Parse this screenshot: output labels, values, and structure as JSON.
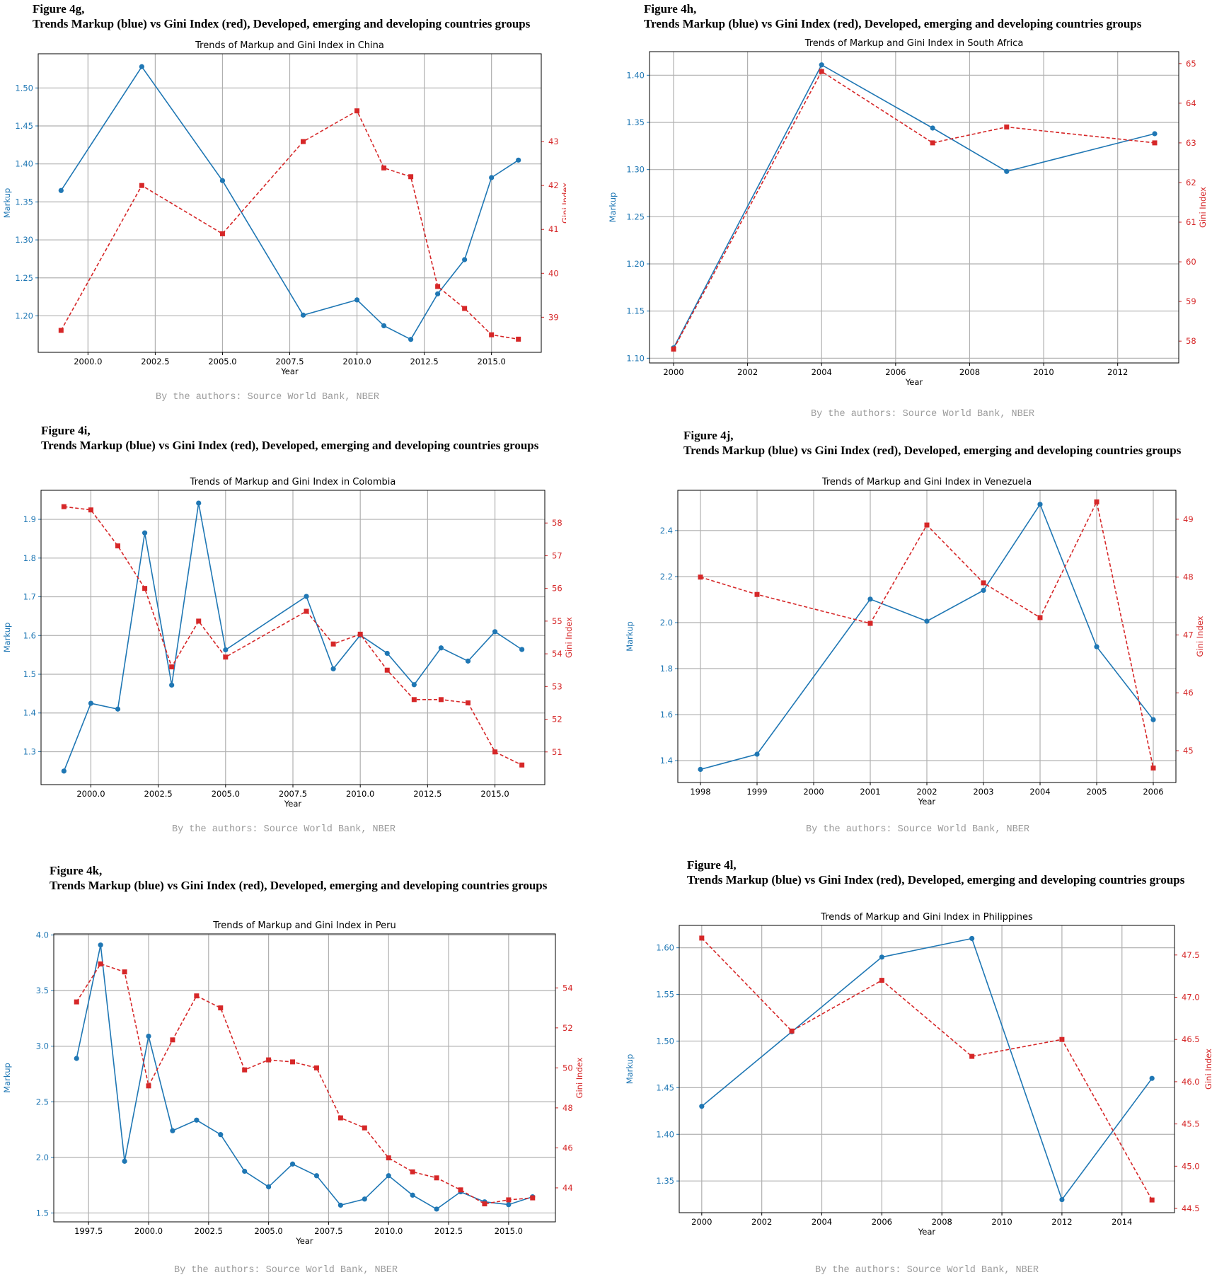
{
  "figure_prefix": "Figure",
  "header_subtitle": "Trends Markup (blue) vs Gini Index (red), Developed, emerging and developing countries groups",
  "credit": "By the authors: Source World Bank, NBER",
  "colors": {
    "markup": "#1f77b4",
    "gini": "#d62728"
  },
  "chart_data": [
    {
      "figure_label": "Figure 4g,",
      "type": "line",
      "title": "Trends of Markup and Gini Index in China",
      "xlabel": "Year",
      "ylabel": "Markup",
      "ylabel_right": "Gini Index",
      "x_ticks": [
        2000,
        2002.5,
        2005,
        2007.5,
        2010,
        2012.5,
        2015
      ],
      "x_tick_labels": [
        "2000.0",
        "2002.5",
        "2005.0",
        "2007.5",
        "2010.0",
        "2012.5",
        "2015.0"
      ],
      "xlim": [
        1998.15,
        2016.85
      ],
      "y_ticks": [
        1.2,
        1.25,
        1.3,
        1.35,
        1.4,
        1.45,
        1.5
      ],
      "y_tick_labels": [
        "1.20",
        "1.25",
        "1.30",
        "1.35",
        "1.40",
        "1.45",
        "1.50"
      ],
      "ylim": [
        1.152,
        1.545
      ],
      "y2_ticks": [
        39,
        40,
        41,
        42,
        43
      ],
      "y2_tick_labels": [
        "39",
        "40",
        "41",
        "42",
        "43"
      ],
      "y2lim": [
        38.2,
        45.0
      ],
      "grid": true,
      "series": [
        {
          "name": "Markup",
          "axis": "left",
          "style": "solid-circle",
          "x": [
            1999,
            2002,
            2005,
            2008,
            2010,
            2011,
            2012,
            2013,
            2014,
            2015,
            2016
          ],
          "values": [
            1.365,
            1.528,
            1.378,
            1.201,
            1.221,
            1.187,
            1.169,
            1.229,
            1.274,
            1.382,
            1.405
          ]
        },
        {
          "name": "Gini Index",
          "axis": "right",
          "style": "dashed-square",
          "x": [
            1999,
            2002,
            2005,
            2008,
            2010,
            2011,
            2012,
            2013,
            2014,
            2015,
            2016
          ],
          "values": [
            38.7,
            42.0,
            40.9,
            43.0,
            43.7,
            42.4,
            42.2,
            39.7,
            39.2,
            38.6,
            38.5
          ]
        }
      ]
    },
    {
      "figure_label": "Figure 4h,",
      "type": "line",
      "title": "Trends of Markup and Gini Index in South Africa",
      "xlabel": "Year",
      "ylabel": "Markup",
      "ylabel_right": "Gini Index",
      "x_ticks": [
        2000,
        2002,
        2004,
        2006,
        2008,
        2010,
        2012
      ],
      "x_tick_labels": [
        "2000",
        "2002",
        "2004",
        "2006",
        "2008",
        "2010",
        "2012"
      ],
      "xlim": [
        1999.35,
        2013.65
      ],
      "y_ticks": [
        1.1,
        1.15,
        1.2,
        1.25,
        1.3,
        1.35,
        1.4
      ],
      "y_tick_labels": [
        "1.10",
        "1.15",
        "1.20",
        "1.25",
        "1.30",
        "1.35",
        "1.40"
      ],
      "y2_ticks": [
        58,
        59,
        60,
        61,
        62,
        63,
        64,
        65
      ],
      "y2_tick_labels": [
        "58",
        "59",
        "60",
        "61",
        "62",
        "63",
        "64",
        "65"
      ],
      "ylim": [
        1.095,
        1.425
      ],
      "y2lim": [
        57.45,
        65.3
      ],
      "grid": true,
      "series": [
        {
          "name": "Markup",
          "axis": "left",
          "style": "solid-circle",
          "x": [
            2000,
            2004,
            2007,
            2009,
            2013
          ],
          "values": [
            1.111,
            1.411,
            1.344,
            1.298,
            1.338
          ]
        },
        {
          "name": "Gini Index",
          "axis": "right",
          "style": "dashed-square",
          "x": [
            2000,
            2004,
            2007,
            2009,
            2013
          ],
          "values": [
            57.8,
            64.8,
            63.0,
            63.4,
            63.0
          ]
        }
      ]
    },
    {
      "figure_label": "Figure 4i,",
      "type": "line",
      "title": "Trends of Markup and Gini Index in Colombia",
      "xlabel": "Year",
      "ylabel": "Markup",
      "ylabel_right": "Gini Index",
      "x_ticks": [
        2000,
        2002.5,
        2005,
        2007.5,
        2010,
        2012.5,
        2015
      ],
      "x_tick_labels": [
        "2000.0",
        "2002.5",
        "2005.0",
        "2007.5",
        "2010.0",
        "2012.5",
        "2015.0"
      ],
      "xlim": [
        1998.15,
        2016.85
      ],
      "y_ticks": [
        1.3,
        1.4,
        1.5,
        1.6,
        1.7,
        1.8,
        1.9
      ],
      "y_tick_labels": [
        "1.3",
        "1.4",
        "1.5",
        "1.6",
        "1.7",
        "1.8",
        "1.9"
      ],
      "ylim": [
        1.215,
        1.975
      ],
      "y2_ticks": [
        51,
        52,
        53,
        54,
        55,
        56,
        57,
        58
      ],
      "y2_tick_labels": [
        "51",
        "52",
        "53",
        "54",
        "55",
        "56",
        "57",
        "58"
      ],
      "y2lim": [
        50.0,
        59.0
      ],
      "grid": true,
      "series": [
        {
          "name": "Markup",
          "axis": "left",
          "style": "solid-circle",
          "x": [
            1999,
            2000,
            2001,
            2002,
            2003,
            2004,
            2005,
            2008,
            2009,
            2010,
            2011,
            2012,
            2013,
            2014,
            2015,
            2016
          ],
          "values": [
            1.25,
            1.425,
            1.41,
            1.865,
            1.472,
            1.942,
            1.563,
            1.701,
            1.514,
            1.601,
            1.554,
            1.473,
            1.568,
            1.534,
            1.61,
            1.564
          ]
        },
        {
          "name": "Gini Index",
          "axis": "right",
          "style": "dashed-square",
          "x": [
            1999,
            2000,
            2001,
            2002,
            2003,
            2004,
            2005,
            2008,
            2009,
            2010,
            2011,
            2012,
            2013,
            2014,
            2015,
            2016
          ],
          "values": [
            58.5,
            58.4,
            57.3,
            56.0,
            53.6,
            55.0,
            53.9,
            55.3,
            54.3,
            54.6,
            53.5,
            52.6,
            52.6,
            52.5,
            51.0,
            50.6
          ]
        }
      ]
    },
    {
      "figure_label": "Figure 4j,",
      "type": "line",
      "title": "Trends of Markup and Gini Index in Venezuela",
      "xlabel": "Year",
      "ylabel": "Markup",
      "ylabel_right": "Gini Index",
      "x_ticks": [
        1998,
        1999,
        2000,
        2001,
        2002,
        2003,
        2004,
        2005,
        2006
      ],
      "x_tick_labels": [
        "1998",
        "1999",
        "2000",
        "2001",
        "2002",
        "2003",
        "2004",
        "2005",
        "2006"
      ],
      "xlim": [
        1997.6,
        2006.4
      ],
      "y_ticks": [
        1.4,
        1.6,
        1.8,
        2.0,
        2.2,
        2.4
      ],
      "y_tick_labels": [
        "1.4",
        "1.6",
        "1.8",
        "2.0",
        "2.2",
        "2.4"
      ],
      "ylim": [
        1.305,
        2.575
      ],
      "y2_ticks": [
        45,
        46,
        47,
        48,
        49
      ],
      "y2_tick_labels": [
        "45",
        "46",
        "47",
        "48",
        "49"
      ],
      "y2lim": [
        44.45,
        49.5
      ],
      "grid": true,
      "series": [
        {
          "name": "Markup",
          "axis": "left",
          "style": "solid-circle",
          "x": [
            1998,
            1999,
            2001,
            2002,
            2003,
            2004,
            2005,
            2006
          ],
          "values": [
            1.362,
            1.428,
            2.102,
            2.006,
            2.14,
            2.514,
            1.895,
            1.578
          ]
        },
        {
          "name": "Gini Index",
          "axis": "right",
          "style": "dashed-square",
          "x": [
            1998,
            1999,
            2001,
            2002,
            2003,
            2004,
            2005,
            2006
          ],
          "values": [
            48.0,
            47.7,
            47.2,
            48.9,
            47.9,
            47.3,
            49.3,
            44.7
          ]
        }
      ]
    },
    {
      "figure_label": "Figure 4k,",
      "type": "line",
      "title": "Trends of Markup and Gini Index in Peru",
      "xlabel": "Year",
      "ylabel": "Markup",
      "ylabel_right": "Gini Index",
      "x_ticks": [
        1997.5,
        2000,
        2002.5,
        2005,
        2007.5,
        2010,
        2012.5,
        2015
      ],
      "x_tick_labels": [
        "1997.5",
        "2000.0",
        "2002.5",
        "2005.0",
        "2007.5",
        "2010.0",
        "2012.5",
        "2015.0"
      ],
      "xlim": [
        1996.05,
        2016.95
      ],
      "y_ticks": [
        1.5,
        2.0,
        2.5,
        3.0,
        3.5,
        4.0
      ],
      "y_tick_labels": [
        "1.5",
        "2.0",
        "2.5",
        "3.0",
        "3.5",
        "4.0"
      ],
      "ylim": [
        1.42,
        4.01
      ],
      "y2_ticks": [
        44,
        46,
        48,
        50,
        52,
        54
      ],
      "y2_tick_labels": [
        "44",
        "46",
        "48",
        "50",
        "52",
        "54"
      ],
      "y2lim": [
        42.3,
        56.7
      ],
      "grid": true,
      "series": [
        {
          "name": "Markup",
          "axis": "left",
          "style": "solid-circle",
          "x": [
            1997,
            1998,
            1999,
            2000,
            2001,
            2002,
            2003,
            2004,
            2005,
            2006,
            2007,
            2008,
            2009,
            2010,
            2011,
            2012,
            2013,
            2014,
            2015,
            2016
          ],
          "values": [
            2.89,
            3.91,
            1.965,
            3.09,
            2.24,
            2.335,
            2.205,
            1.875,
            1.735,
            1.94,
            1.835,
            1.57,
            1.625,
            1.835,
            1.66,
            1.535,
            1.69,
            1.6,
            1.575,
            1.645
          ]
        },
        {
          "name": "Gini Index",
          "axis": "right",
          "style": "dashed-square",
          "x": [
            1997,
            1998,
            1999,
            2000,
            2001,
            2002,
            2003,
            2004,
            2005,
            2006,
            2007,
            2008,
            2009,
            2010,
            2011,
            2012,
            2013,
            2014,
            2015,
            2016
          ],
          "values": [
            53.3,
            55.2,
            54.8,
            49.1,
            51.4,
            53.6,
            53.0,
            49.9,
            50.4,
            50.3,
            50.0,
            47.5,
            47.0,
            45.5,
            44.8,
            44.5,
            43.9,
            43.2,
            43.4,
            43.5
          ]
        }
      ]
    },
    {
      "figure_label": "Figure 4l,",
      "type": "line",
      "title": "Trends of Markup and Gini Index in Philippines",
      "xlabel": "Year",
      "ylabel": "Markup",
      "ylabel_right": "Gini Index",
      "x_ticks": [
        2000,
        2002,
        2004,
        2006,
        2008,
        2010,
        2012,
        2014
      ],
      "x_tick_labels": [
        "2000",
        "2002",
        "2004",
        "2006",
        "2008",
        "2010",
        "2012",
        "2014"
      ],
      "xlim": [
        1999.25,
        2015.75
      ],
      "y_ticks": [
        1.35,
        1.4,
        1.45,
        1.5,
        1.55,
        1.6
      ],
      "y_tick_labels": [
        "1.35",
        "1.40",
        "1.45",
        "1.50",
        "1.55",
        "1.60"
      ],
      "ylim": [
        1.316,
        1.624
      ],
      "y2_ticks": [
        44.5,
        45.0,
        45.5,
        46.0,
        46.5,
        47.0,
        47.5
      ],
      "y2_tick_labels": [
        "44.5",
        "45.0",
        "45.5",
        "46.0",
        "46.5",
        "47.0",
        "47.5"
      ],
      "y2lim": [
        44.45,
        47.85
      ],
      "grid": true,
      "series": [
        {
          "name": "Markup",
          "axis": "left",
          "style": "solid-circle",
          "x": [
            2000,
            2003,
            2006,
            2009,
            2012,
            2015
          ],
          "values": [
            1.43,
            1.51,
            1.59,
            1.61,
            1.33,
            1.46
          ]
        },
        {
          "name": "Gini Index",
          "axis": "right",
          "style": "dashed-square",
          "x": [
            2000,
            2003,
            2006,
            2009,
            2012,
            2015
          ],
          "values": [
            47.7,
            46.6,
            47.2,
            46.3,
            46.5,
            44.6
          ]
        }
      ]
    }
  ]
}
